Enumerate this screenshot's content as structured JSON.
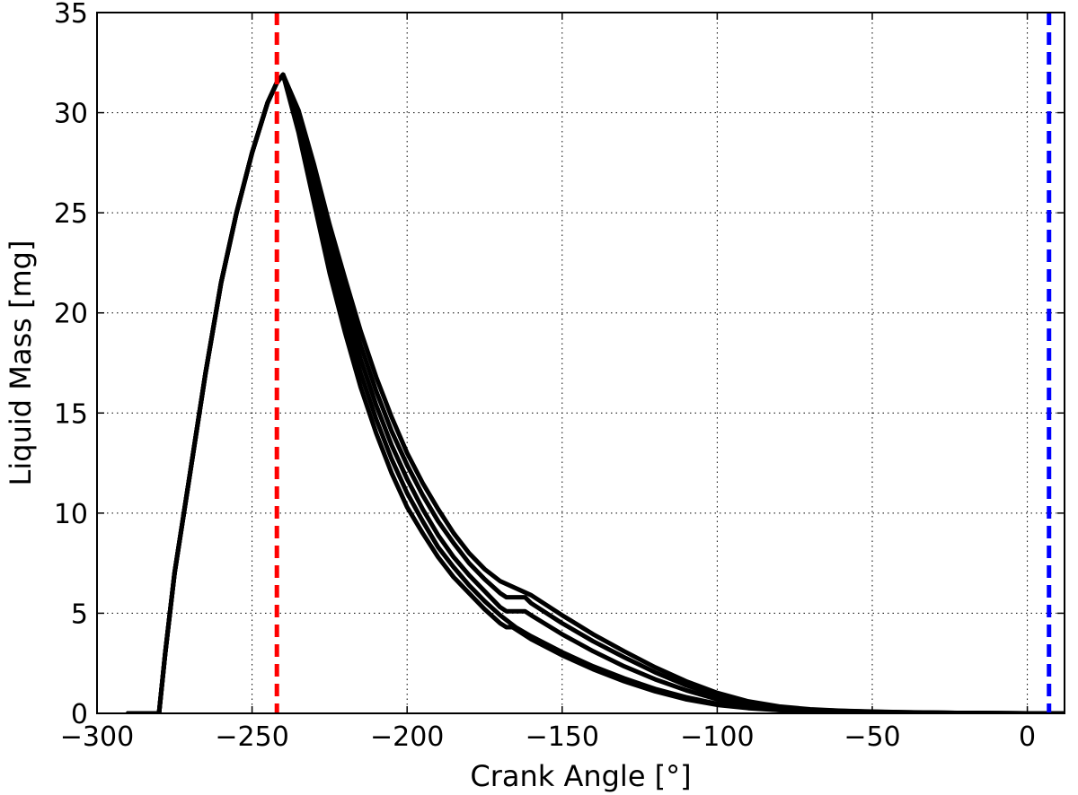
{
  "chart_data": {
    "type": "line",
    "title": "",
    "xlabel": "Crank Angle [°]",
    "ylabel": "Liquid Mass [mg]",
    "xlim": [
      -300,
      12
    ],
    "ylim": [
      0,
      35
    ],
    "xticks": [
      -300,
      -250,
      -200,
      -150,
      -100,
      -50,
      0
    ],
    "xtick_labels": [
      "−300",
      "−250",
      "−200",
      "−150",
      "−100",
      "−50",
      "0"
    ],
    "yticks": [
      0,
      5,
      10,
      15,
      20,
      25,
      30,
      35
    ],
    "ytick_labels": [
      "0",
      "5",
      "10",
      "15",
      "20",
      "25",
      "30",
      "35"
    ],
    "grid": true,
    "grid_style": "dotted",
    "line_color": "#000000",
    "vlines": [
      {
        "x": -242,
        "color": "#ff0000",
        "style": "dashed"
      },
      {
        "x": 7,
        "color": "#0000ff",
        "style": "dashed"
      }
    ],
    "series": [
      {
        "color": "#000000",
        "points": [
          [
            -290,
            0
          ],
          [
            -280,
            0
          ],
          [
            -278,
            3
          ],
          [
            -275,
            7
          ],
          [
            -270,
            12
          ],
          [
            -265,
            17
          ],
          [
            -260,
            21.5
          ],
          [
            -255,
            25
          ],
          [
            -250,
            28
          ],
          [
            -245,
            30.5
          ],
          [
            -242,
            31.5
          ],
          [
            -240,
            31.9
          ],
          [
            -235,
            29
          ],
          [
            -230,
            25.5
          ],
          [
            -225,
            22
          ],
          [
            -220,
            19
          ],
          [
            -215,
            16.3
          ],
          [
            -210,
            14
          ],
          [
            -205,
            12
          ],
          [
            -200,
            10.3
          ],
          [
            -195,
            9
          ],
          [
            -190,
            7.8
          ],
          [
            -185,
            6.8
          ],
          [
            -180,
            6
          ],
          [
            -175,
            5.2
          ],
          [
            -170,
            4.5
          ],
          [
            -168,
            4.3
          ],
          [
            -166,
            4.3
          ],
          [
            -160,
            3.7
          ],
          [
            -150,
            2.9
          ],
          [
            -140,
            2.2
          ],
          [
            -130,
            1.6
          ],
          [
            -120,
            1.1
          ],
          [
            -110,
            0.7
          ],
          [
            -100,
            0.42
          ],
          [
            -90,
            0.26
          ],
          [
            -80,
            0.16
          ],
          [
            -70,
            0.1
          ],
          [
            -60,
            0.07
          ],
          [
            -50,
            0.05
          ],
          [
            -40,
            0.03
          ],
          [
            -30,
            0.02
          ],
          [
            -20,
            0.01
          ],
          [
            -10,
            0
          ],
          [
            0,
            0
          ],
          [
            10,
            0
          ]
        ]
      },
      {
        "color": "#000000",
        "points": [
          [
            -290,
            0
          ],
          [
            -280,
            0
          ],
          [
            -278,
            3
          ],
          [
            -275,
            7
          ],
          [
            -270,
            12
          ],
          [
            -265,
            17
          ],
          [
            -260,
            21.5
          ],
          [
            -255,
            25
          ],
          [
            -250,
            28
          ],
          [
            -245,
            30.5
          ],
          [
            -242,
            31.5
          ],
          [
            -240,
            31.9
          ],
          [
            -235,
            29.3
          ],
          [
            -230,
            26
          ],
          [
            -225,
            22.6
          ],
          [
            -220,
            19.6
          ],
          [
            -215,
            17
          ],
          [
            -210,
            14.7
          ],
          [
            -205,
            12.7
          ],
          [
            -200,
            11
          ],
          [
            -195,
            9.6
          ],
          [
            -190,
            8.3
          ],
          [
            -185,
            7.3
          ],
          [
            -180,
            6.4
          ],
          [
            -175,
            5.6
          ],
          [
            -170,
            4.9
          ],
          [
            -165,
            4.3
          ],
          [
            -160,
            3.85
          ],
          [
            -150,
            3.05
          ],
          [
            -140,
            2.35
          ],
          [
            -130,
            1.75
          ],
          [
            -120,
            1.22
          ],
          [
            -110,
            0.8
          ],
          [
            -100,
            0.48
          ],
          [
            -90,
            0.29
          ],
          [
            -80,
            0.17
          ],
          [
            -70,
            0.11
          ],
          [
            -60,
            0.07
          ],
          [
            -50,
            0.05
          ],
          [
            -40,
            0.03
          ],
          [
            -30,
            0.02
          ],
          [
            -20,
            0.01
          ],
          [
            -10,
            0
          ],
          [
            0,
            0
          ],
          [
            10,
            0
          ]
        ]
      },
      {
        "color": "#000000",
        "points": [
          [
            -290,
            0
          ],
          [
            -280,
            0
          ],
          [
            -278,
            3
          ],
          [
            -275,
            7
          ],
          [
            -270,
            12
          ],
          [
            -265,
            17
          ],
          [
            -260,
            21.5
          ],
          [
            -255,
            25
          ],
          [
            -250,
            28
          ],
          [
            -245,
            30.5
          ],
          [
            -242,
            31.5
          ],
          [
            -240,
            31.9
          ],
          [
            -235,
            29.6
          ],
          [
            -230,
            26.5
          ],
          [
            -225,
            23.2
          ],
          [
            -220,
            20.3
          ],
          [
            -215,
            17.7
          ],
          [
            -210,
            15.4
          ],
          [
            -205,
            13.4
          ],
          [
            -200,
            11.7
          ],
          [
            -195,
            10.2
          ],
          [
            -190,
            8.9
          ],
          [
            -185,
            7.8
          ],
          [
            -180,
            6.9
          ],
          [
            -175,
            6.1
          ],
          [
            -170,
            5.3
          ],
          [
            -168,
            5.1
          ],
          [
            -162,
            5.1
          ],
          [
            -160,
            4.9
          ],
          [
            -150,
            3.95
          ],
          [
            -140,
            3.1
          ],
          [
            -130,
            2.35
          ],
          [
            -120,
            1.7
          ],
          [
            -110,
            1.15
          ],
          [
            -100,
            0.7
          ],
          [
            -90,
            0.42
          ],
          [
            -80,
            0.24
          ],
          [
            -70,
            0.15
          ],
          [
            -60,
            0.1
          ],
          [
            -50,
            0.07
          ],
          [
            -40,
            0.05
          ],
          [
            -30,
            0.03
          ],
          [
            -20,
            0.02
          ],
          [
            -10,
            0.01
          ],
          [
            0,
            0
          ],
          [
            10,
            0
          ]
        ]
      },
      {
        "color": "#000000",
        "points": [
          [
            -290,
            0
          ],
          [
            -280,
            0
          ],
          [
            -278,
            3
          ],
          [
            -275,
            7
          ],
          [
            -270,
            12
          ],
          [
            -265,
            17
          ],
          [
            -260,
            21.5
          ],
          [
            -255,
            25
          ],
          [
            -250,
            28
          ],
          [
            -245,
            30.5
          ],
          [
            -242,
            31.5
          ],
          [
            -240,
            31.9
          ],
          [
            -235,
            29.9
          ],
          [
            -230,
            27
          ],
          [
            -225,
            23.8
          ],
          [
            -220,
            21
          ],
          [
            -215,
            18.4
          ],
          [
            -210,
            16.1
          ],
          [
            -205,
            14.1
          ],
          [
            -200,
            12.4
          ],
          [
            -195,
            10.9
          ],
          [
            -190,
            9.6
          ],
          [
            -185,
            8.5
          ],
          [
            -180,
            7.5
          ],
          [
            -175,
            6.7
          ],
          [
            -170,
            6
          ],
          [
            -168,
            5.8
          ],
          [
            -162,
            5.8
          ],
          [
            -160,
            5.5
          ],
          [
            -150,
            4.5
          ],
          [
            -140,
            3.6
          ],
          [
            -130,
            2.8
          ],
          [
            -120,
            2.05
          ],
          [
            -110,
            1.4
          ],
          [
            -100,
            0.88
          ],
          [
            -90,
            0.52
          ],
          [
            -80,
            0.3
          ],
          [
            -70,
            0.18
          ],
          [
            -60,
            0.12
          ],
          [
            -50,
            0.08
          ],
          [
            -40,
            0.05
          ],
          [
            -30,
            0.03
          ],
          [
            -20,
            0.02
          ],
          [
            -10,
            0.01
          ],
          [
            0,
            0
          ],
          [
            10,
            0
          ]
        ]
      },
      {
        "color": "#000000",
        "points": [
          [
            -290,
            0
          ],
          [
            -280,
            0
          ],
          [
            -278,
            3
          ],
          [
            -275,
            7
          ],
          [
            -270,
            12
          ],
          [
            -265,
            17
          ],
          [
            -260,
            21.5
          ],
          [
            -255,
            25
          ],
          [
            -250,
            28
          ],
          [
            -245,
            30.5
          ],
          [
            -242,
            31.5
          ],
          [
            -240,
            31.9
          ],
          [
            -235,
            30.1
          ],
          [
            -230,
            27.4
          ],
          [
            -225,
            24.4
          ],
          [
            -220,
            21.7
          ],
          [
            -215,
            19.1
          ],
          [
            -210,
            16.8
          ],
          [
            -205,
            14.8
          ],
          [
            -200,
            13
          ],
          [
            -195,
            11.5
          ],
          [
            -190,
            10.2
          ],
          [
            -185,
            9
          ],
          [
            -180,
            8
          ],
          [
            -175,
            7.2
          ],
          [
            -170,
            6.6
          ],
          [
            -160,
            5.9
          ],
          [
            -150,
            4.9
          ],
          [
            -140,
            3.95
          ],
          [
            -130,
            3.1
          ],
          [
            -120,
            2.3
          ],
          [
            -110,
            1.6
          ],
          [
            -100,
            1.02
          ],
          [
            -90,
            0.6
          ],
          [
            -80,
            0.34
          ],
          [
            -70,
            0.2
          ],
          [
            -60,
            0.13
          ],
          [
            -50,
            0.09
          ],
          [
            -40,
            0.06
          ],
          [
            -30,
            0.04
          ],
          [
            -20,
            0.02
          ],
          [
            -10,
            0.01
          ],
          [
            0,
            0
          ],
          [
            12,
            0
          ]
        ]
      }
    ]
  }
}
